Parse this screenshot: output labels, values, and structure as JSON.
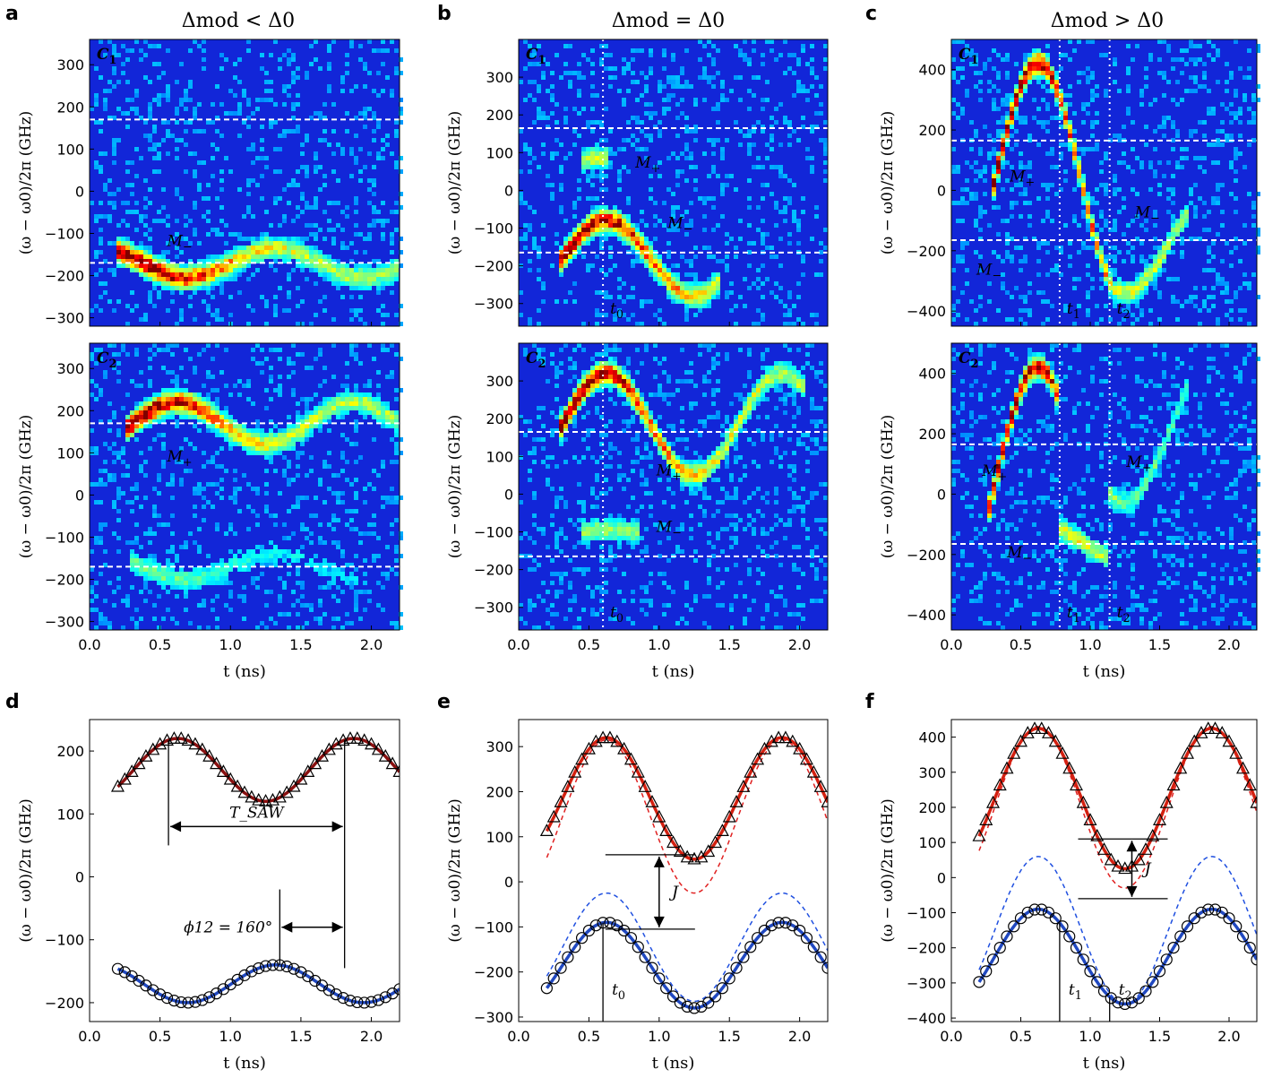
{
  "figure": {
    "col_titles": [
      "Δmod < Δ0",
      "Δmod = Δ0",
      "Δmod > Δ0"
    ],
    "panel_letters": [
      "a",
      "b",
      "c",
      "d",
      "e",
      "f"
    ],
    "xlabel": "t (ns)",
    "ylabel": "(ω − ω0)/2π (GHz)",
    "x_ticks": [
      "0.0",
      "0.5",
      "1.0",
      "1.5",
      "2.0"
    ]
  },
  "chart_data": [
    {
      "panel": "a",
      "detector": "C1",
      "type": "heatmap",
      "xlim": [
        0,
        2.2
      ],
      "ylim": [
        -320,
        360
      ],
      "yticks": [
        -300,
        -200,
        -100,
        0,
        100,
        200,
        300
      ],
      "dashed_y": [
        170,
        -170
      ],
      "dotted_x": [],
      "annotations": [
        {
          "text": "M−",
          "x": 0.55,
          "y": -130
        }
      ],
      "traces": [
        {
          "kind": "sin",
          "center": -170,
          "amp": 35,
          "period": 1.25,
          "phase_deg": 160,
          "t0": 0.2,
          "t1": 2.2,
          "intensity": 1.0
        }
      ]
    },
    {
      "panel": "a",
      "detector": "C2",
      "type": "heatmap",
      "xlim": [
        0,
        2.2
      ],
      "ylim": [
        -320,
        360
      ],
      "yticks": [
        -300,
        -200,
        -100,
        0,
        100,
        200,
        300
      ],
      "dashed_y": [
        170,
        -170
      ],
      "dotted_x": [],
      "annotations": [
        {
          "text": "M+",
          "x": 0.55,
          "y": 80
        }
      ],
      "traces": [
        {
          "kind": "sin",
          "center": 170,
          "amp": 50,
          "period": 1.25,
          "phase_deg": 0,
          "t0": 0.25,
          "t1": 2.2,
          "intensity": 1.0
        },
        {
          "kind": "sin",
          "center": -170,
          "amp": 30,
          "period": 1.25,
          "phase_deg": 160,
          "t0": 0.3,
          "t1": 1.9,
          "intensity": 0.3
        }
      ]
    },
    {
      "panel": "b",
      "detector": "C1",
      "type": "heatmap",
      "xlim": [
        0,
        2.2
      ],
      "ylim": [
        -360,
        400
      ],
      "yticks": [
        -300,
        -200,
        -100,
        0,
        100,
        200,
        300
      ],
      "dashed_y": [
        165,
        -165
      ],
      "dotted_x": [
        0.6
      ],
      "time_labels": [
        "t0"
      ],
      "annotations": [
        {
          "text": "M+",
          "x": 0.83,
          "y": 60
        },
        {
          "text": "M−",
          "x": 1.06,
          "y": -100
        }
      ],
      "traces": [
        {
          "kind": "sin",
          "center": -180,
          "amp": 100,
          "period": 1.25,
          "phase_deg": 0,
          "t0": 0.3,
          "t1": 1.45,
          "intensity": 1.0
        },
        {
          "kind": "sin",
          "center": 70,
          "amp": 15,
          "period": 1.25,
          "phase_deg": 0,
          "t0": 0.45,
          "t1": 0.65,
          "intensity": 0.4
        }
      ]
    },
    {
      "panel": "b",
      "detector": "C2",
      "type": "heatmap",
      "xlim": [
        0,
        2.2
      ],
      "ylim": [
        -360,
        400
      ],
      "yticks": [
        -300,
        -200,
        -100,
        0,
        100,
        200,
        300
      ],
      "dashed_y": [
        165,
        -165
      ],
      "dotted_x": [
        0.6
      ],
      "time_labels": [
        "t0"
      ],
      "annotations": [
        {
          "text": "M+",
          "x": 0.98,
          "y": 50
        },
        {
          "text": "M−",
          "x": 0.98,
          "y": -100
        }
      ],
      "traces": [
        {
          "kind": "sin",
          "center": 185,
          "amp": 135,
          "period": 1.25,
          "phase_deg": 0,
          "t0": 0.3,
          "t1": 2.05,
          "intensity": 1.0
        },
        {
          "kind": "sin",
          "center": -105,
          "amp": 10,
          "period": 1.25,
          "phase_deg": 0,
          "t0": 0.45,
          "t1": 0.85,
          "intensity": 0.35
        }
      ]
    },
    {
      "panel": "c",
      "detector": "C1",
      "type": "heatmap",
      "xlim": [
        0,
        2.2
      ],
      "ylim": [
        -450,
        500
      ],
      "yticks": [
        -400,
        -200,
        0,
        200,
        400
      ],
      "dashed_y": [
        165,
        -165
      ],
      "dotted_x": [
        0.78,
        1.14
      ],
      "time_labels": [
        "t1",
        "t2"
      ],
      "annotations": [
        {
          "text": "M+",
          "x": 0.42,
          "y": 30
        },
        {
          "text": "M−",
          "x": 1.32,
          "y": -90
        },
        {
          "text": "M−",
          "x": 0.18,
          "y": -280
        }
      ],
      "traces": [
        {
          "kind": "sin",
          "center": 30,
          "amp": 390,
          "period": 1.25,
          "phase_deg": 0,
          "t0": 0.3,
          "t1": 1.15,
          "intensity": 1.0
        },
        {
          "kind": "sin",
          "center": -180,
          "amp": 160,
          "period": 1.25,
          "phase_deg": 0,
          "t0": 1.15,
          "t1": 1.7,
          "intensity": 0.45
        }
      ]
    },
    {
      "panel": "c",
      "detector": "C2",
      "type": "heatmap",
      "xlim": [
        0,
        2.2
      ],
      "ylim": [
        -450,
        500
      ],
      "yticks": [
        -400,
        -200,
        0,
        200,
        400
      ],
      "dashed_y": [
        165,
        -165
      ],
      "dotted_x": [
        0.78,
        1.14
      ],
      "time_labels": [
        "t1",
        "t2"
      ],
      "annotations": [
        {
          "text": "M+",
          "x": 0.22,
          "y": 60
        },
        {
          "text": "M+",
          "x": 1.26,
          "y": 90
        },
        {
          "text": "M−",
          "x": 0.4,
          "y": -210
        }
      ],
      "traces": [
        {
          "kind": "sin",
          "center": 30,
          "amp": 390,
          "period": 1.25,
          "phase_deg": 0,
          "t0": 0.25,
          "t1": 0.78,
          "intensity": 1.0
        },
        {
          "kind": "sin",
          "center": -160,
          "amp": 60,
          "period": 1.25,
          "phase_deg": 0,
          "t0": 0.78,
          "t1": 1.14,
          "intensity": 0.45
        },
        {
          "kind": "sin",
          "center": 200,
          "amp": 230,
          "period": 1.25,
          "phase_deg": 0,
          "t0": 1.14,
          "t1": 1.7,
          "intensity": 0.3
        }
      ]
    },
    {
      "panel": "d",
      "type": "scatter",
      "xlim": [
        0,
        2.2
      ],
      "ylim": [
        -230,
        250
      ],
      "yticks": [
        -200,
        -100,
        0,
        100,
        200
      ],
      "upper_fit": {
        "center": 170,
        "amp": 50,
        "period": 1.25,
        "phase_deg": 0
      },
      "lower_fit": {
        "center": -170,
        "amp": 30,
        "period": 1.25,
        "phase_deg": 160
      },
      "markers": {
        "upper": "triangle",
        "lower": "circle"
      },
      "annotations": [
        {
          "text": "T_SAW",
          "x": 1.18,
          "y": 110,
          "span_t": [
            0.56,
            1.81
          ],
          "arrow_y": 80
        },
        {
          "text": "ϕ12 = 160°",
          "x": 0.9,
          "y": -60,
          "span_t": [
            1.35,
            1.81
          ],
          "arrow_y": -80
        }
      ]
    },
    {
      "panel": "e",
      "type": "scatter",
      "xlim": [
        0,
        2.2
      ],
      "ylim": [
        -310,
        360
      ],
      "yticks": [
        -300,
        -200,
        -100,
        0,
        100,
        200,
        300
      ],
      "upper_fit": {
        "center": 185,
        "amp": 135,
        "period": 1.25,
        "phase_deg": 0
      },
      "lower_fit": {
        "center": -185,
        "amp": 95,
        "period": 1.25,
        "phase_deg": 0
      },
      "bare_dashed": [
        {
          "center": 145,
          "amp": 170,
          "period": 1.25,
          "phase_deg": 0,
          "color": "red"
        },
        {
          "center": -145,
          "amp": 120,
          "period": 1.25,
          "phase_deg": 0,
          "color": "blue"
        }
      ],
      "splitting": {
        "label": "J",
        "y_top": 60,
        "y_bottom": -105,
        "x": 1.0
      },
      "time_lines": [
        {
          "label": "t0",
          "t": 0.6
        }
      ]
    },
    {
      "panel": "f",
      "type": "scatter",
      "xlim": [
        0,
        2.2
      ],
      "ylim": [
        -410,
        450
      ],
      "yticks": [
        -400,
        -300,
        -200,
        -100,
        0,
        100,
        200,
        300,
        400
      ],
      "upper_fit": {
        "center": 225,
        "amp": 200,
        "period": 1.25,
        "phase_deg": 0
      },
      "lower_fit": {
        "center": -225,
        "amp": 135,
        "period": 1.25,
        "phase_deg": 0
      },
      "bare_dashed": [
        {
          "center": 200,
          "amp": 230,
          "period": 1.25,
          "phase_deg": 0,
          "color": "red"
        },
        {
          "center": -150,
          "amp": 210,
          "period": 1.25,
          "phase_deg": 0,
          "color": "blue"
        }
      ],
      "splitting": {
        "label": "J",
        "y_top": 110,
        "y_bottom": -60,
        "x": 1.3
      },
      "time_lines": [
        {
          "label": "t1",
          "t": 0.78
        },
        {
          "label": "t2",
          "t": 1.14
        }
      ]
    }
  ]
}
